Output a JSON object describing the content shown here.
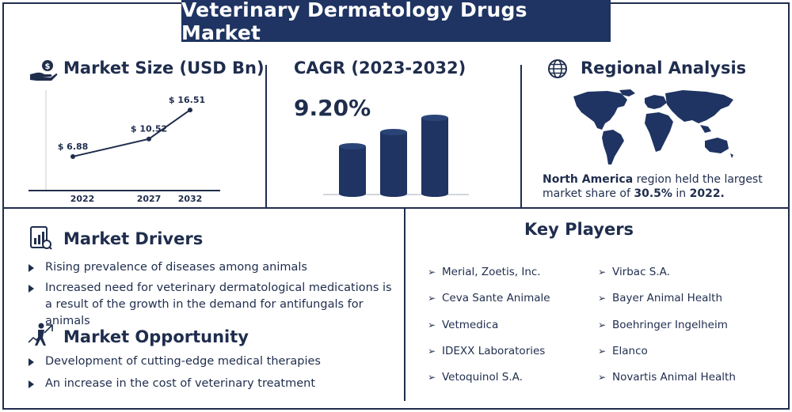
{
  "title": "Veterinary Dermatology Drugs Market",
  "market_size": {
    "heading": "Market Size (USD Bn)",
    "icon": "money-hand-icon"
  },
  "cagr": {
    "heading": "CAGR (2023-2032)",
    "value": "9.20%"
  },
  "regional": {
    "heading": "Regional Analysis",
    "icon": "globe-icon",
    "text_bold_1": "North America",
    "text_mid": " region held the largest market share of ",
    "text_bold_2": "30.5%",
    "text_mid_2": " in ",
    "text_bold_3": "2022."
  },
  "drivers": {
    "heading": "Market Drivers",
    "icon": "report-icon",
    "items": [
      "Rising prevalence of diseases among animals",
      "Increased need for veterinary dermatological medications is a result of the growth in the demand for antifungals for animals"
    ]
  },
  "opportunity": {
    "heading": "Market Opportunity",
    "icon": "growth-person-icon",
    "items": [
      "Development of cutting-edge medical therapies",
      "An increase in the cost of veterinary treatment"
    ]
  },
  "key_players": {
    "heading": "Key Players",
    "left": [
      "Merial, Zoetis, Inc.",
      "Ceva Sante Animale",
      "Vetmedica",
      "IDEXX Laboratories",
      "Vetoquinol S.A."
    ],
    "right": [
      "Virbac S.A.",
      "Bayer Animal Health",
      "Boehringer Ingelheim",
      "Elanco",
      "Novartis Animal Health"
    ]
  },
  "colors": {
    "navy": "#1f3462",
    "text": "#1f2d4d"
  },
  "chart_data": [
    {
      "type": "line",
      "title": "Market Size (USD Bn)",
      "categories": [
        "2022",
        "2027",
        "2032"
      ],
      "values": [
        6.88,
        10.52,
        16.51
      ],
      "data_labels": [
        "$ 6.88",
        "$ 10.52",
        "$ 16.51"
      ],
      "ylim": [
        0,
        18
      ]
    },
    {
      "type": "bar",
      "title": "CAGR (2023-2032)",
      "values": [
        1,
        1.3,
        1.6
      ]
    }
  ]
}
